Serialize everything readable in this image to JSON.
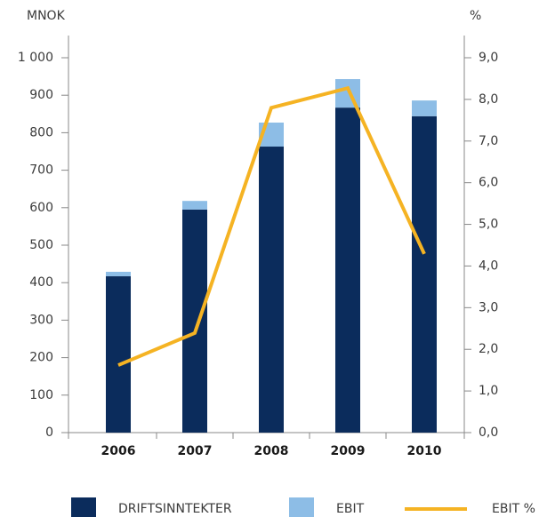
{
  "chart_data": {
    "type": "bar",
    "y_label": "MNOK",
    "y2_label": "%",
    "categories": [
      "2006",
      "2007",
      "2008",
      "2009",
      "2010"
    ],
    "series": [
      {
        "name": "DRIFTSINNTEKTER",
        "color": "#0b2c5c",
        "values": [
          417,
          595,
          763,
          867,
          844
        ]
      },
      {
        "name": "EBIT",
        "color": "#8dbde6",
        "values": [
          12,
          23,
          64,
          76,
          42
        ]
      },
      {
        "name": "EBIT %",
        "color": "#f5b323",
        "type": "line",
        "axis": "y2",
        "values": [
          1.62,
          2.39,
          7.8,
          8.27,
          4.29
        ]
      }
    ],
    "stacked": true,
    "ylim": [
      0,
      1000
    ],
    "yticks": [
      0,
      100,
      200,
      300,
      400,
      500,
      600,
      700,
      800,
      900,
      {
        "value": 1000,
        "label": "1 000"
      }
    ],
    "y2lim": [
      0,
      9
    ],
    "y2ticks": [
      {
        "value": 0,
        "label": "0,0"
      },
      {
        "value": 1,
        "label": "1,0"
      },
      {
        "value": 2,
        "label": "2,0"
      },
      {
        "value": 3,
        "label": "3,0"
      },
      {
        "value": 4,
        "label": "4,0"
      },
      {
        "value": 5,
        "label": "5,0"
      },
      {
        "value": 6,
        "label": "6,0"
      },
      {
        "value": 7,
        "label": "7,0"
      },
      {
        "value": 8,
        "label": "8,0"
      },
      {
        "value": 9,
        "label": "9,0"
      }
    ],
    "legend": "bottom"
  }
}
